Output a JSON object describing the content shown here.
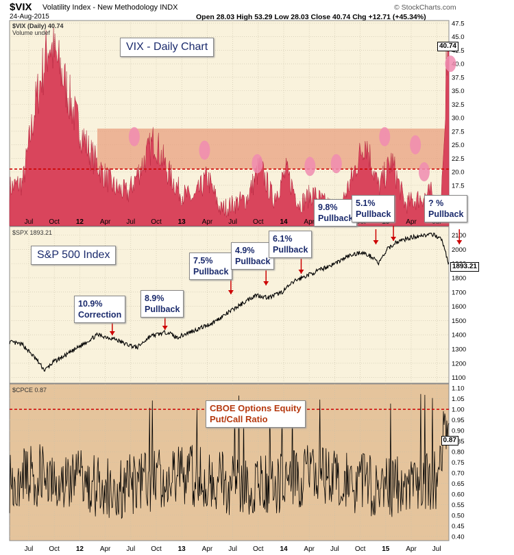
{
  "header": {
    "symbol": "$VIX",
    "name": "Volatility Index - New Methodology  INDX",
    "date": "24-Aug-2015",
    "ohlc": "Open 28.03  High 53.29  Low 28.03  Close 40.74  Chg +12.71 (+45.34%)",
    "logo": "© StockCharts.com"
  },
  "panels": {
    "vix": {
      "legend": "$VIX (Daily) 40.74",
      "sublegend": "Volume undef",
      "last_value": "40.74",
      "title_box": "VIX - Daily Chart"
    },
    "spx": {
      "legend": "$SPX 1893.21",
      "last_value": "1893.21",
      "title_box": "S&P 500 Index"
    },
    "cpce": {
      "legend": "$CPCE 0.87",
      "last_value": "0.87",
      "title_box_1": "CBOE Options Equity",
      "title_box_2": "Put/Call Ratio"
    }
  },
  "annotations": [
    {
      "l1": "10.9%",
      "l2": "Correction"
    },
    {
      "l1": "8.9%",
      "l2": "Pullback"
    },
    {
      "l1": "7.5%",
      "l2": "Pullback"
    },
    {
      "l1": "4.9%",
      "l2": "Pullback"
    },
    {
      "l1": "6.1%",
      "l2": "Pullback"
    },
    {
      "l1": "9.8%",
      "l2": "Pullback"
    },
    {
      "l1": "5.1%",
      "l2": "Pullback"
    },
    {
      "l1": "? %",
      "l2": "Pullback"
    }
  ],
  "colors": {
    "vix_fill": "#d9455c",
    "zone_fill": "#e8a080",
    "panel_bg": "#f9f2dc",
    "cpce_bg": "#e5c49c",
    "threshold_line": "#cc0000",
    "box_text": "#1a2a6c"
  },
  "chart_data": [
    {
      "type": "area",
      "title": "VIX - Daily Chart",
      "x_ticks": [
        "Jul",
        "Oct",
        "12",
        "Apr",
        "Jul",
        "Oct",
        "13",
        "Apr",
        "Jul",
        "Oct",
        "14",
        "Apr",
        "Jul",
        "Oct",
        "15",
        "Apr",
        "Jul"
      ],
      "y_ticks": [
        "12.5",
        "15.0",
        "17.5",
        "20.0",
        "22.5",
        "25.0",
        "27.5",
        "30.0",
        "32.5",
        "35.0",
        "37.5",
        "40.0",
        "42.5",
        "45.0",
        "47.5"
      ],
      "ylim": [
        10,
        48
      ],
      "threshold": 20.5,
      "zone": [
        20.5,
        28
      ],
      "series": [
        {
          "name": "$VIX (Daily)",
          "x": [
            0,
            0.03,
            0.06,
            0.09,
            0.12,
            0.15,
            0.18,
            0.21,
            0.24,
            0.27,
            0.3,
            0.33,
            0.36,
            0.39,
            0.42,
            0.45,
            0.48,
            0.51,
            0.54,
            0.57,
            0.6,
            0.63,
            0.66,
            0.69,
            0.72,
            0.75,
            0.78,
            0.81,
            0.84,
            0.87,
            0.9,
            0.93,
            0.96,
            0.97,
            0.98,
            1.0
          ],
          "values": [
            17,
            18,
            33,
            44,
            38,
            30,
            24,
            20,
            17,
            16,
            21,
            26,
            20,
            16,
            15,
            19,
            13,
            14,
            15,
            21,
            15,
            20,
            14,
            16,
            14,
            13,
            19,
            26,
            17,
            22,
            14,
            15,
            16,
            14,
            12.5,
            40.74
          ]
        }
      ],
      "highlights_x": [
        0.29,
        0.45,
        0.57,
        0.69,
        0.75,
        0.86,
        0.93,
        0.95,
        1.01
      ]
    },
    {
      "type": "line",
      "title": "S&P 500 Index",
      "x_ticks": [
        "Jul",
        "Oct",
        "12",
        "Apr",
        "Jul",
        "Oct",
        "13",
        "Apr",
        "Jul",
        "Oct",
        "14",
        "Apr",
        "Jul",
        "Oct",
        "15",
        "Apr",
        "Jul"
      ],
      "y_ticks": [
        "1100",
        "1200",
        "1300",
        "1400",
        "1500",
        "1600",
        "1700",
        "1800",
        "1900",
        "2000",
        "2100"
      ],
      "ylim": [
        1060,
        2160
      ],
      "series": [
        {
          "name": "$SPX",
          "x": [
            0,
            0.03,
            0.06,
            0.08,
            0.1,
            0.13,
            0.16,
            0.2,
            0.24,
            0.26,
            0.29,
            0.32,
            0.36,
            0.38,
            0.42,
            0.46,
            0.5,
            0.53,
            0.56,
            0.59,
            0.62,
            0.65,
            0.68,
            0.71,
            0.74,
            0.77,
            0.8,
            0.83,
            0.84,
            0.86,
            0.88,
            0.91,
            0.94,
            0.97,
            0.985,
            1.0
          ],
          "values": [
            1350,
            1330,
            1230,
            1150,
            1210,
            1260,
            1320,
            1400,
            1370,
            1340,
            1310,
            1390,
            1420,
            1380,
            1430,
            1480,
            1560,
            1620,
            1680,
            1660,
            1700,
            1780,
            1820,
            1860,
            1900,
            1950,
            1980,
            1940,
            1900,
            2000,
            2050,
            2080,
            2100,
            2100,
            2060,
            1893.21
          ]
        }
      ],
      "pullback_x": [
        0.24,
        0.36,
        0.51,
        0.59,
        0.67,
        0.84,
        0.88,
        1.03
      ]
    },
    {
      "type": "line",
      "title": "CBOE Options Equity Put/Call Ratio",
      "x_ticks": [
        "Jul",
        "Oct",
        "12",
        "Apr",
        "Jul",
        "Oct",
        "13",
        "Apr",
        "Jul",
        "Oct",
        "14",
        "Apr",
        "Jul",
        "Oct",
        "15",
        "Apr",
        "Jul"
      ],
      "y_ticks": [
        "0.40",
        "0.45",
        "0.50",
        "0.55",
        "0.60",
        "0.65",
        "0.70",
        "0.75",
        "0.80",
        "0.85",
        "0.90",
        "0.95",
        "1.00",
        "1.05",
        "1.10"
      ],
      "ylim": [
        0.38,
        1.12
      ],
      "threshold": 1.0,
      "series": [
        {
          "name": "$CPCE",
          "x": [
            0,
            1.0
          ],
          "values": [
            0.65,
            0.87
          ]
        }
      ]
    }
  ]
}
